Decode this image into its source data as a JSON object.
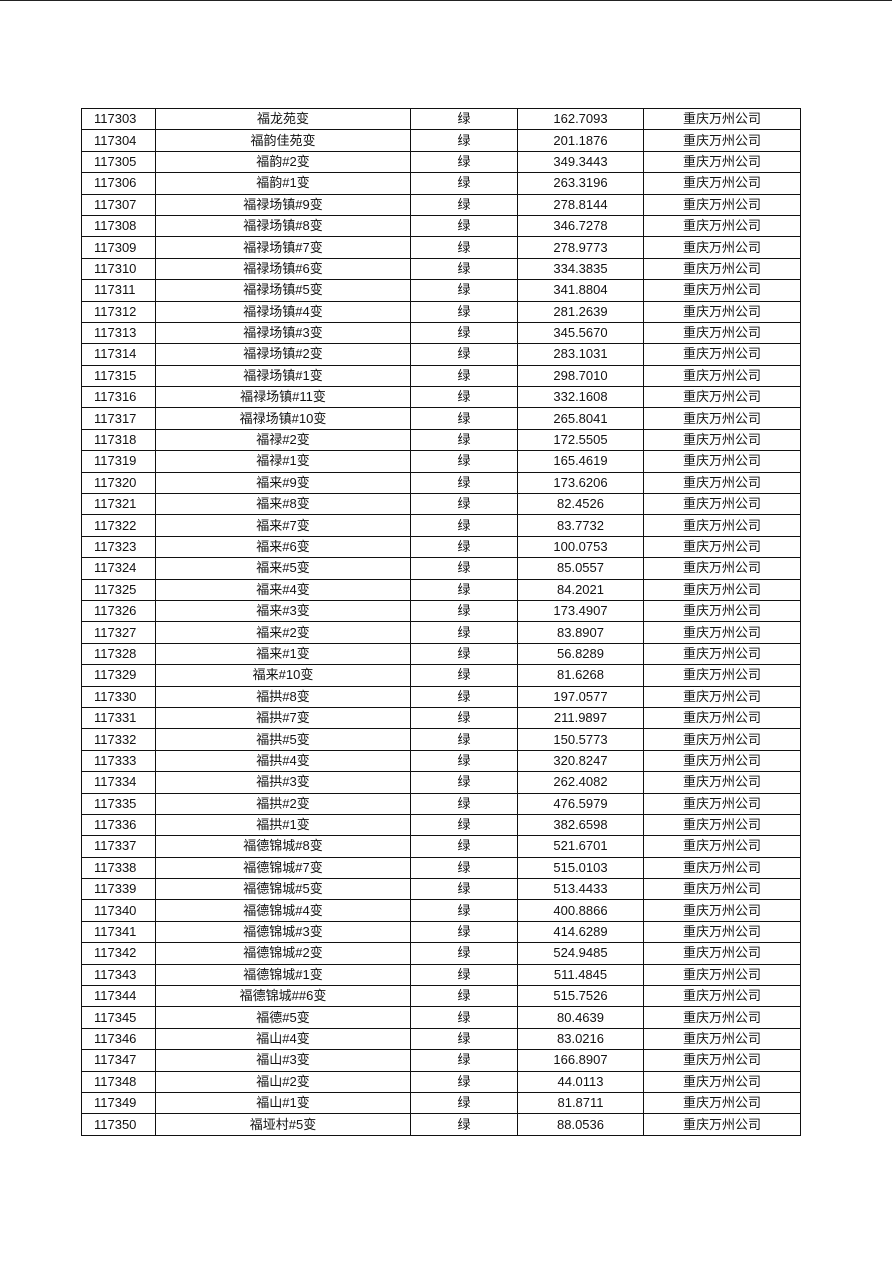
{
  "table": {
    "rows": [
      [
        "117303",
        "福龙苑变",
        "绿",
        "162.7093",
        "重庆万州公司"
      ],
      [
        "117304",
        "福韵佳苑变",
        "绿",
        "201.1876",
        "重庆万州公司"
      ],
      [
        "117305",
        "福韵#2变",
        "绿",
        "349.3443",
        "重庆万州公司"
      ],
      [
        "117306",
        "福韵#1变",
        "绿",
        "263.3196",
        "重庆万州公司"
      ],
      [
        "117307",
        "福禄场镇#9变",
        "绿",
        "278.8144",
        "重庆万州公司"
      ],
      [
        "117308",
        "福禄场镇#8变",
        "绿",
        "346.7278",
        "重庆万州公司"
      ],
      [
        "117309",
        "福禄场镇#7变",
        "绿",
        "278.9773",
        "重庆万州公司"
      ],
      [
        "117310",
        "福禄场镇#6变",
        "绿",
        "334.3835",
        "重庆万州公司"
      ],
      [
        "117311",
        "福禄场镇#5变",
        "绿",
        "341.8804",
        "重庆万州公司"
      ],
      [
        "117312",
        "福禄场镇#4变",
        "绿",
        "281.2639",
        "重庆万州公司"
      ],
      [
        "117313",
        "福禄场镇#3变",
        "绿",
        "345.5670",
        "重庆万州公司"
      ],
      [
        "117314",
        "福禄场镇#2变",
        "绿",
        "283.1031",
        "重庆万州公司"
      ],
      [
        "117315",
        "福禄场镇#1变",
        "绿",
        "298.7010",
        "重庆万州公司"
      ],
      [
        "117316",
        "福禄场镇#11变",
        "绿",
        "332.1608",
        "重庆万州公司"
      ],
      [
        "117317",
        "福禄场镇#10变",
        "绿",
        "265.8041",
        "重庆万州公司"
      ],
      [
        "117318",
        "福禄#2变",
        "绿",
        "172.5505",
        "重庆万州公司"
      ],
      [
        "117319",
        "福禄#1变",
        "绿",
        "165.4619",
        "重庆万州公司"
      ],
      [
        "117320",
        "福来#9变",
        "绿",
        "173.6206",
        "重庆万州公司"
      ],
      [
        "117321",
        "福来#8变",
        "绿",
        "82.4526",
        "重庆万州公司"
      ],
      [
        "117322",
        "福来#7变",
        "绿",
        "83.7732",
        "重庆万州公司"
      ],
      [
        "117323",
        "福来#6变",
        "绿",
        "100.0753",
        "重庆万州公司"
      ],
      [
        "117324",
        "福来#5变",
        "绿",
        "85.0557",
        "重庆万州公司"
      ],
      [
        "117325",
        "福来#4变",
        "绿",
        "84.2021",
        "重庆万州公司"
      ],
      [
        "117326",
        "福来#3变",
        "绿",
        "173.4907",
        "重庆万州公司"
      ],
      [
        "117327",
        "福来#2变",
        "绿",
        "83.8907",
        "重庆万州公司"
      ],
      [
        "117328",
        "福来#1变",
        "绿",
        "56.8289",
        "重庆万州公司"
      ],
      [
        "117329",
        "福来#10变",
        "绿",
        "81.6268",
        "重庆万州公司"
      ],
      [
        "117330",
        "福拱#8变",
        "绿",
        "197.0577",
        "重庆万州公司"
      ],
      [
        "117331",
        "福拱#7变",
        "绿",
        "211.9897",
        "重庆万州公司"
      ],
      [
        "117332",
        "福拱#5变",
        "绿",
        "150.5773",
        "重庆万州公司"
      ],
      [
        "117333",
        "福拱#4变",
        "绿",
        "320.8247",
        "重庆万州公司"
      ],
      [
        "117334",
        "福拱#3变",
        "绿",
        "262.4082",
        "重庆万州公司"
      ],
      [
        "117335",
        "福拱#2变",
        "绿",
        "476.5979",
        "重庆万州公司"
      ],
      [
        "117336",
        "福拱#1变",
        "绿",
        "382.6598",
        "重庆万州公司"
      ],
      [
        "117337",
        "福德锦城#8变",
        "绿",
        "521.6701",
        "重庆万州公司"
      ],
      [
        "117338",
        "福德锦城#7变",
        "绿",
        "515.0103",
        "重庆万州公司"
      ],
      [
        "117339",
        "福德锦城#5变",
        "绿",
        "513.4433",
        "重庆万州公司"
      ],
      [
        "117340",
        "福德锦城#4变",
        "绿",
        "400.8866",
        "重庆万州公司"
      ],
      [
        "117341",
        "福德锦城#3变",
        "绿",
        "414.6289",
        "重庆万州公司"
      ],
      [
        "117342",
        "福德锦城#2变",
        "绿",
        "524.9485",
        "重庆万州公司"
      ],
      [
        "117343",
        "福德锦城#1变",
        "绿",
        "511.4845",
        "重庆万州公司"
      ],
      [
        "117344",
        "福德锦城##6变",
        "绿",
        "515.7526",
        "重庆万州公司"
      ],
      [
        "117345",
        "福德#5变",
        "绿",
        "80.4639",
        "重庆万州公司"
      ],
      [
        "117346",
        "福山#4变",
        "绿",
        "83.0216",
        "重庆万州公司"
      ],
      [
        "117347",
        "福山#3变",
        "绿",
        "166.8907",
        "重庆万州公司"
      ],
      [
        "117348",
        "福山#2变",
        "绿",
        "44.0113",
        "重庆万州公司"
      ],
      [
        "117349",
        "福山#1变",
        "绿",
        "81.8711",
        "重庆万州公司"
      ],
      [
        "117350",
        "福垭村#5变",
        "绿",
        "88.0536",
        "重庆万州公司"
      ]
    ]
  }
}
